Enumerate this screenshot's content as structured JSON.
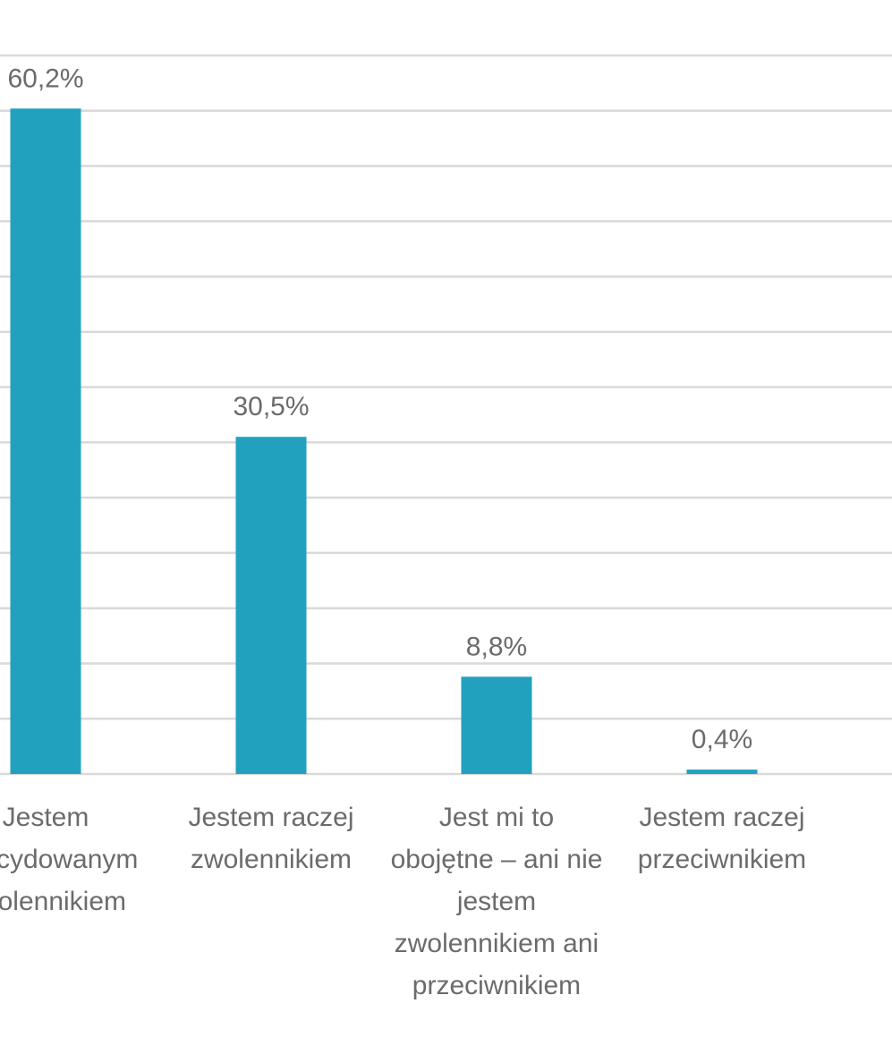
{
  "chart_data": {
    "type": "bar",
    "categories": [
      "Jestem zdecydowanym zwolennikiem",
      "Jestem raczej zwolennikiem",
      "Jest mi to obojętne – ani nie jestem zwolennikiem ani przeciwnikiem",
      "Jestem raczej przeciwnikiem"
    ],
    "values": [
      60.2,
      30.5,
      8.8,
      0.4
    ],
    "value_labels": [
      "60,2%",
      "30,5%",
      "8,8%",
      "0,4%"
    ],
    "color": "#22a1bf",
    "ylim": [
      0,
      65
    ],
    "yticks": [
      0,
      5,
      10,
      15,
      20,
      25,
      30,
      35,
      40,
      45,
      50,
      55,
      60,
      65
    ],
    "grid": true
  }
}
